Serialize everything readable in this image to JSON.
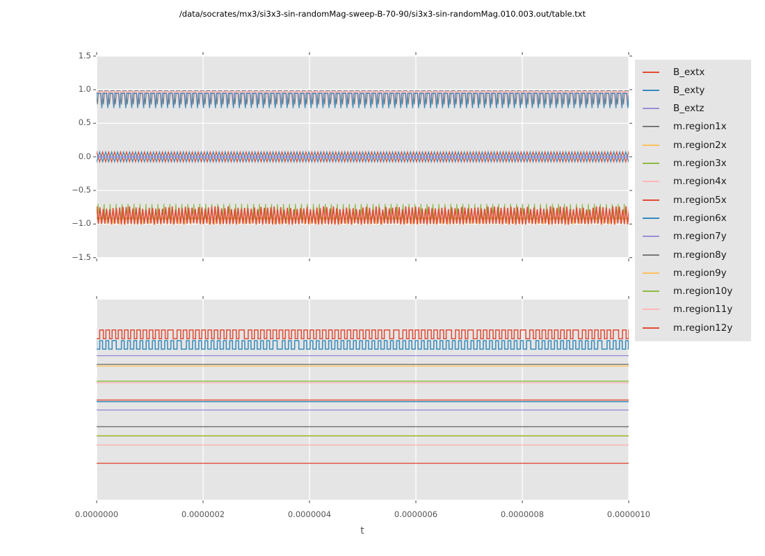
{
  "title": "/data/socrates/mx3/si3x3-sin-randomMag-sweep-B-70-90/si3x3-sin-randomMag.010.003.out/table.txt",
  "colors": {
    "red": "#E24A33",
    "blue": "#348ABD",
    "purple": "#988ED5",
    "gray": "#777777",
    "orange": "#FBC15E",
    "green": "#8EBA42",
    "pink": "#FFB5B8",
    "axes_bg": "#E5E5E5",
    "grid": "#FFFFFF",
    "tick_text": "#555555",
    "title_text": "#000000"
  },
  "legend": {
    "items": [
      {
        "label": "B_extx",
        "color": "#E24A33"
      },
      {
        "label": "B_exty",
        "color": "#348ABD"
      },
      {
        "label": "B_extz",
        "color": "#988ED5"
      },
      {
        "label": "m.region1x",
        "color": "#777777"
      },
      {
        "label": "m.region2x",
        "color": "#FBC15E"
      },
      {
        "label": "m.region3x",
        "color": "#8EBA42"
      },
      {
        "label": "m.region4x",
        "color": "#FFB5B8"
      },
      {
        "label": "m.region5x",
        "color": "#E24A33"
      },
      {
        "label": "m.region6x",
        "color": "#348ABD"
      },
      {
        "label": "m.region7y",
        "color": "#988ED5"
      },
      {
        "label": "m.region8y",
        "color": "#777777"
      },
      {
        "label": "m.region9y",
        "color": "#FBC15E"
      },
      {
        "label": "m.region10y",
        "color": "#8EBA42"
      },
      {
        "label": "m.region11y",
        "color": "#FFB5B8"
      },
      {
        "label": "m.region12y",
        "color": "#E24A33"
      }
    ]
  },
  "chart_data": [
    {
      "type": "line",
      "subplot": "top",
      "xlim": [
        0,
        1e-06
      ],
      "ylim": [
        -1.5,
        1.5
      ],
      "yticks": [
        1.5,
        1.0,
        0.5,
        0.0,
        -0.5,
        -1.0,
        -1.5
      ],
      "ytick_labels": [
        "1.5",
        "1.0",
        "0.5",
        "0.0",
        "−0.5",
        "−1.0",
        "−1.5"
      ],
      "grid": true,
      "cycles_visible": 89,
      "series": [
        {
          "name": "B_extx",
          "color": "#E24A33",
          "shape": "triangle",
          "mean": 0,
          "amp": 0.073,
          "phase": 0.0
        },
        {
          "name": "B_exty",
          "color": "#348ABD",
          "shape": "triangle",
          "mean": 0,
          "amp": 0.073,
          "phase": 0.5
        },
        {
          "name": "B_extz",
          "color": "#988ED5",
          "shape": "triangle",
          "mean": 0,
          "amp": 0.012,
          "phase": 0.25
        },
        {
          "name": "m.region1x",
          "color": "#777777",
          "shape": "trapezoid",
          "top": 0.985,
          "bottom": 0.78,
          "phase": 0.35,
          "duty": 0.58
        },
        {
          "name": "m.region2x",
          "color": "#FBC15E",
          "shape": "spikes-down",
          "base": -0.9,
          "min": -1.005,
          "phase": 0.15
        },
        {
          "name": "m.region3x",
          "color": "#8EBA42",
          "shape": "spikes-up",
          "base": -0.92,
          "peak": -0.7,
          "phase": 0.55
        },
        {
          "name": "m.region4x",
          "color": "#FFB5B8",
          "shape": "trapezoid",
          "top": 0.965,
          "bottom": 0.765,
          "phase": 0.0,
          "duty": 0.6
        },
        {
          "name": "m.region5x",
          "color": "#E24A33",
          "shape": "noisy-band",
          "top": -0.735,
          "bottom": -0.99
        },
        {
          "name": "m.region6x",
          "color": "#348ABD",
          "shape": "trapezoid",
          "top": 0.945,
          "bottom": 0.725,
          "phase": 0.06,
          "duty": 0.62
        }
      ]
    },
    {
      "type": "line",
      "subplot": "bottom",
      "xlabel": "t",
      "xlim": [
        0,
        1e-06
      ],
      "xticks": [
        0.0,
        2e-07,
        4e-07,
        6e-07,
        8e-07,
        1e-06
      ],
      "xtick_labels": [
        "0.0000000",
        "0.0000002",
        "0.0000004",
        "0.0000006",
        "0.0000008",
        "0.0000010"
      ],
      "ytick_labels": [],
      "grid": "vertical-only",
      "cycles_visible": 86,
      "series": [
        {
          "name": "s1-red-square",
          "color": "#E24A33",
          "shape": "square",
          "y_high_frac": 0.152,
          "y_low_frac": 0.196,
          "duty": 0.58,
          "phase": 0.0
        },
        {
          "name": "s2-blue-square",
          "color": "#348ABD",
          "shape": "square",
          "y_high_frac": 0.206,
          "y_low_frac": 0.248,
          "duty": 0.45,
          "phase": 0.5
        },
        {
          "name": "s3-purple-flat",
          "color": "#988ED5",
          "shape": "flat",
          "y_frac": 0.28
        },
        {
          "name": "s4-gray-flat",
          "color": "#777777",
          "shape": "flat",
          "y_frac": 0.324
        },
        {
          "name": "s5-orange-flat",
          "color": "#FBC15E",
          "shape": "flat",
          "y_frac": 0.332
        },
        {
          "name": "s6-green-flat",
          "color": "#8EBA42",
          "shape": "flat",
          "y_frac": 0.408
        },
        {
          "name": "s7-pink-flat",
          "color": "#FFB5B8",
          "shape": "flat",
          "y_frac": 0.416
        },
        {
          "name": "s8-red-flat",
          "color": "#E24A33",
          "shape": "flat",
          "y_frac": 0.502
        },
        {
          "name": "s9-blue-flat",
          "color": "#348ABD",
          "shape": "flat",
          "y_frac": 0.51
        },
        {
          "name": "s10-purple-flat",
          "color": "#988ED5",
          "shape": "flat",
          "y_frac": 0.552
        },
        {
          "name": "s11-gray-flat",
          "color": "#777777",
          "shape": "flat",
          "y_frac": 0.635
        },
        {
          "name": "s12-orange-flat",
          "color": "#FBC15E",
          "shape": "flat",
          "y_frac": 0.68
        },
        {
          "name": "s13-green-flat",
          "color": "#8EBA42",
          "shape": "flat",
          "y_frac": 0.6815
        },
        {
          "name": "s14-pink-flat",
          "color": "#FFB5B8",
          "shape": "flat",
          "y_frac": 0.727
        },
        {
          "name": "s15-red-flat",
          "color": "#E24A33",
          "shape": "flat",
          "y_frac": 0.818
        }
      ]
    }
  ]
}
